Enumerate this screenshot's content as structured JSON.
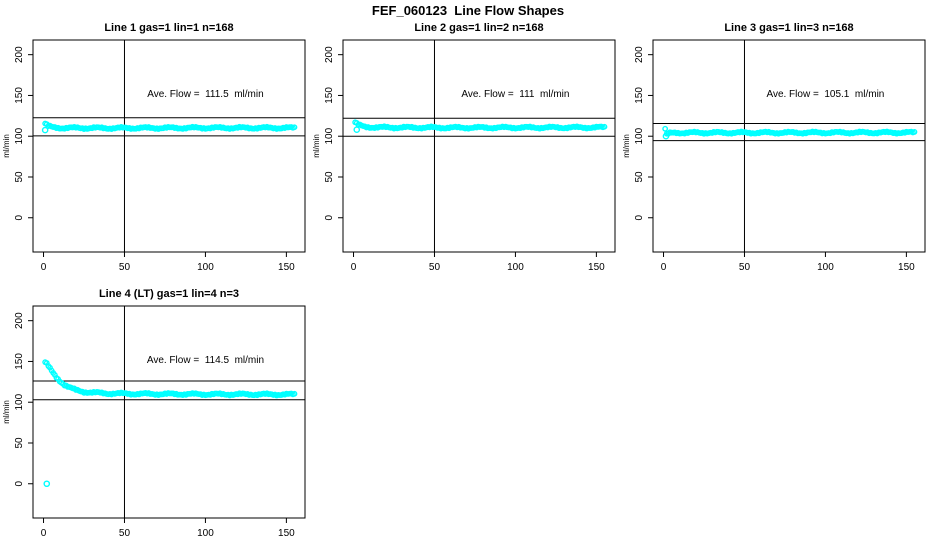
{
  "page": {
    "title": "FEF_060123  Line Flow Shapes"
  },
  "chart_data": [
    {
      "type": "scatter",
      "title": "Line 1 gas=1 lin=1 n=168",
      "annotation": "Ave. Flow =  111.5  ml/min",
      "avg_flow_ml_min": 111.5,
      "n": 168,
      "xlabel": "",
      "ylabel": "ml/min",
      "xlim": [
        -6.5,
        161.5
      ],
      "ylim": [
        -42,
        218
      ],
      "xticks": [
        0,
        50,
        100,
        150
      ],
      "yticks": [
        0,
        50,
        100,
        150,
        200
      ],
      "grid": false,
      "vline_x": 50,
      "hlines": [
        122.7,
        100.4
      ],
      "marker_color": "#00ffff",
      "series": [
        {
          "name": "flow",
          "x_end": 155,
          "anchors": [
            [
              1,
              115.5
            ],
            [
              3,
              112
            ],
            [
              6,
              110.8
            ],
            [
              12,
              110.2
            ],
            [
              40,
              110
            ],
            [
              100,
              110.3
            ],
            [
              155,
              110.2
            ]
          ]
        }
      ],
      "extra_points": [
        [
          1,
          107.5
        ]
      ]
    },
    {
      "type": "scatter",
      "title": "Line 2 gas=1 lin=2 n=168",
      "annotation": "Ave. Flow =  111  ml/min",
      "avg_flow_ml_min": 111,
      "n": 168,
      "xlabel": "",
      "ylabel": "ml/min",
      "xlim": [
        -6.5,
        161.5
      ],
      "ylim": [
        -42,
        218
      ],
      "xticks": [
        0,
        50,
        100,
        150
      ],
      "yticks": [
        0,
        50,
        100,
        150,
        200
      ],
      "grid": false,
      "vline_x": 50,
      "hlines": [
        122.1,
        99.9
      ],
      "marker_color": "#00ffff",
      "series": [
        {
          "name": "flow",
          "x_end": 155,
          "anchors": [
            [
              1,
              117
            ],
            [
              3,
              113.5
            ],
            [
              7,
              111.5
            ],
            [
              15,
              110.8
            ],
            [
              60,
              110.5
            ],
            [
              155,
              110.8
            ]
          ]
        }
      ],
      "extra_points": [
        [
          2,
          108
        ]
      ]
    },
    {
      "type": "scatter",
      "title": "Line 3 gas=1 lin=3 n=168",
      "annotation": "Ave. Flow =  105.1  ml/min",
      "avg_flow_ml_min": 105.1,
      "n": 168,
      "xlabel": "",
      "ylabel": "ml/min",
      "xlim": [
        -6.5,
        161.5
      ],
      "ylim": [
        -42,
        218
      ],
      "xticks": [
        0,
        50,
        100,
        150
      ],
      "yticks": [
        0,
        50,
        100,
        150,
        200
      ],
      "grid": false,
      "vline_x": 50,
      "hlines": [
        115.6,
        94.6
      ],
      "marker_color": "#00ffff",
      "series": [
        {
          "name": "flow",
          "x_end": 155,
          "anchors": [
            [
              1,
              109
            ],
            [
              2,
              102
            ],
            [
              4,
              103.5
            ],
            [
              8,
              104.3
            ],
            [
              40,
              104.3
            ],
            [
              155,
              104.5
            ]
          ]
        }
      ],
      "extra_points": [
        [
          1.5,
          100
        ]
      ]
    },
    {
      "type": "scatter",
      "title": "Line 4 (LT) gas=1 lin=4 n=3",
      "annotation": "Ave. Flow =  114.5  ml/min",
      "avg_flow_ml_min": 114.5,
      "n": 3,
      "xlabel": "",
      "ylabel": "ml/min",
      "xlim": [
        -6.5,
        161.5
      ],
      "ylim": [
        -42,
        218
      ],
      "xticks": [
        0,
        50,
        100,
        150
      ],
      "yticks": [
        0,
        50,
        100,
        150,
        200
      ],
      "grid": false,
      "vline_x": 50,
      "hlines": [
        126.0,
        103.1
      ],
      "marker_color": "#00ffff",
      "series": [
        {
          "name": "flow",
          "x_end": 155,
          "anchors": [
            [
              1,
              149
            ],
            [
              2,
              147
            ],
            [
              4,
              141
            ],
            [
              6,
              135.5
            ],
            [
              8,
              130.5
            ],
            [
              10,
              126.5
            ],
            [
              13,
              121.5
            ],
            [
              16,
              118
            ],
            [
              20,
              114.8
            ],
            [
              25,
              112.8
            ],
            [
              30,
              111.8
            ],
            [
              40,
              110.8
            ],
            [
              60,
              110.2
            ],
            [
              100,
              109.8
            ],
            [
              155,
              109.5
            ]
          ]
        }
      ],
      "extra_points": [
        [
          2,
          0
        ]
      ]
    }
  ]
}
